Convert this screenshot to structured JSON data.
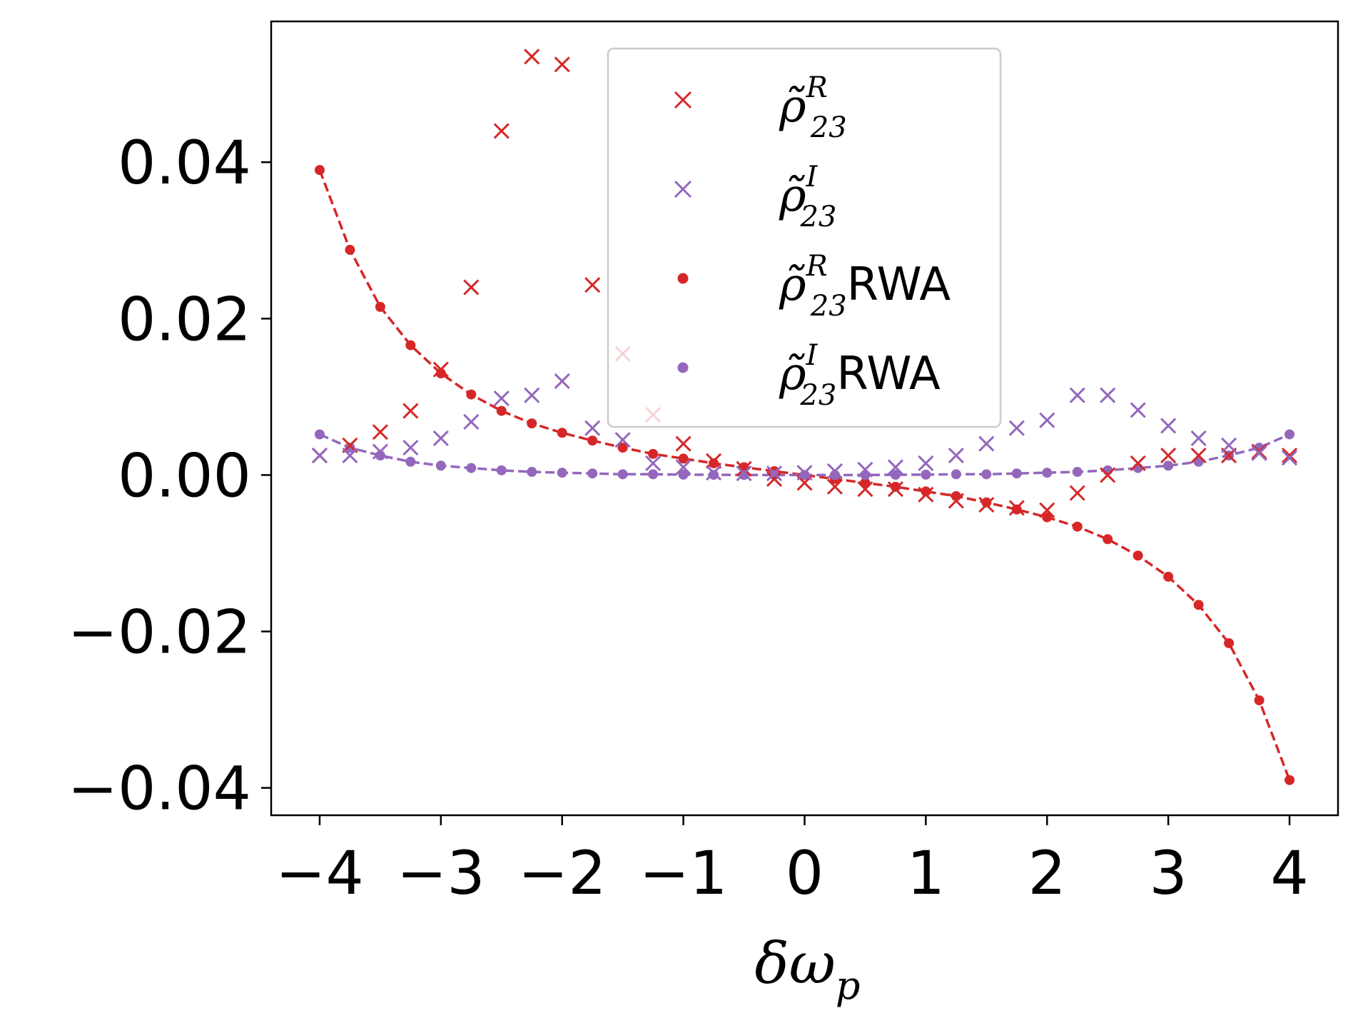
{
  "chart_data": {
    "type": "scatter",
    "title": "",
    "xlabel": "δω",
    "xlabel_sub": "p",
    "ylabel": "",
    "xlim": [
      -4.4,
      4.4
    ],
    "ylim": [
      -0.0435,
      0.058
    ],
    "xticks": [
      -4,
      -3,
      -2,
      -1,
      0,
      1,
      2,
      3,
      4
    ],
    "xtick_labels": [
      "−4",
      "−3",
      "−2",
      "−1",
      "0",
      "1",
      "2",
      "3",
      "4"
    ],
    "yticks": [
      0.04,
      0.02,
      0.0,
      -0.02,
      -0.04
    ],
    "ytick_labels": [
      "0.04",
      "0.02",
      "0.00",
      "−0.02",
      "−0.04"
    ],
    "legend_position": "upper-center",
    "x": [
      -4,
      -3.75,
      -3.5,
      -3.25,
      -3,
      -2.75,
      -2.5,
      -2.25,
      -2,
      -1.75,
      -1.5,
      -1.25,
      -1,
      -0.75,
      -0.5,
      -0.25,
      0,
      0.25,
      0.5,
      0.75,
      1,
      1.25,
      1.5,
      1.75,
      2,
      2.25,
      2.5,
      2.75,
      3,
      3.25,
      3.5,
      3.75,
      4
    ],
    "series": [
      {
        "name": "ρ̃23 R",
        "legend_symbol": "ρ̃",
        "legend_sup": "R",
        "legend_sub": "23",
        "legend_suffix": "",
        "marker": "x",
        "line": "none",
        "color": "#d62728",
        "values": [
          0.0025,
          0.0038,
          0.0055,
          0.0082,
          0.0135,
          0.024,
          0.044,
          0.0535,
          0.0525,
          0.0243,
          0.0155,
          0.0077,
          0.004,
          0.0018,
          0.0008,
          -0.0005,
          -0.001,
          -0.0015,
          -0.0018,
          -0.0018,
          -0.0025,
          -0.0033,
          -0.0038,
          -0.0042,
          -0.0045,
          -0.0023,
          0.0,
          0.0015,
          0.0025,
          0.0025,
          0.0025,
          0.003,
          0.0025
        ]
      },
      {
        "name": "ρ̃23 I",
        "legend_symbol": "ρ̃",
        "legend_sup": "I",
        "legend_sub": "23",
        "legend_suffix": "",
        "marker": "x",
        "line": "none",
        "color": "#9467bd",
        "values": [
          0.0025,
          0.0025,
          0.003,
          0.0035,
          0.0047,
          0.0068,
          0.0098,
          0.0102,
          0.012,
          0.006,
          0.0045,
          0.0015,
          0.001,
          0.0003,
          0.0002,
          0.0002,
          0.0003,
          0.0005,
          0.0007,
          0.001,
          0.0015,
          0.0025,
          0.004,
          0.006,
          0.007,
          0.0102,
          0.0102,
          0.0083,
          0.0063,
          0.0047,
          0.0038,
          0.0028,
          0.0022
        ]
      },
      {
        "name": "ρ̃23 R RWA",
        "legend_symbol": "ρ̃",
        "legend_sup": "R",
        "legend_sub": "23",
        "legend_suffix": "RWA",
        "marker": "dot",
        "line": "dashed",
        "color": "#d62728",
        "values": [
          0.039,
          0.0288,
          0.0215,
          0.0166,
          0.013,
          0.0103,
          0.0082,
          0.0066,
          0.0054,
          0.0044,
          0.0035,
          0.0027,
          0.0021,
          0.0015,
          0.001,
          0.0005,
          0.0,
          -0.0005,
          -0.001,
          -0.0015,
          -0.0021,
          -0.0027,
          -0.0035,
          -0.0044,
          -0.0054,
          -0.0066,
          -0.0082,
          -0.0103,
          -0.013,
          -0.0166,
          -0.0215,
          -0.0288,
          -0.039
        ]
      },
      {
        "name": "ρ̃23 I RWA",
        "legend_symbol": "ρ̃",
        "legend_sup": "I",
        "legend_sub": "23",
        "legend_suffix": "RWA",
        "marker": "dot",
        "line": "dashed",
        "color": "#9467bd",
        "values": [
          0.0052,
          0.0035,
          0.0025,
          0.0017,
          0.0012,
          0.0009,
          0.0006,
          0.0004,
          0.0003,
          0.0002,
          0.0001,
          0.0001,
          5e-05,
          3e-05,
          1e-05,
          0.0,
          0.0,
          0.0,
          1e-05,
          3e-05,
          5e-05,
          0.0001,
          0.0001,
          0.0002,
          0.0003,
          0.0004,
          0.0006,
          0.0009,
          0.0012,
          0.0017,
          0.0025,
          0.0035,
          0.0052
        ]
      }
    ]
  }
}
